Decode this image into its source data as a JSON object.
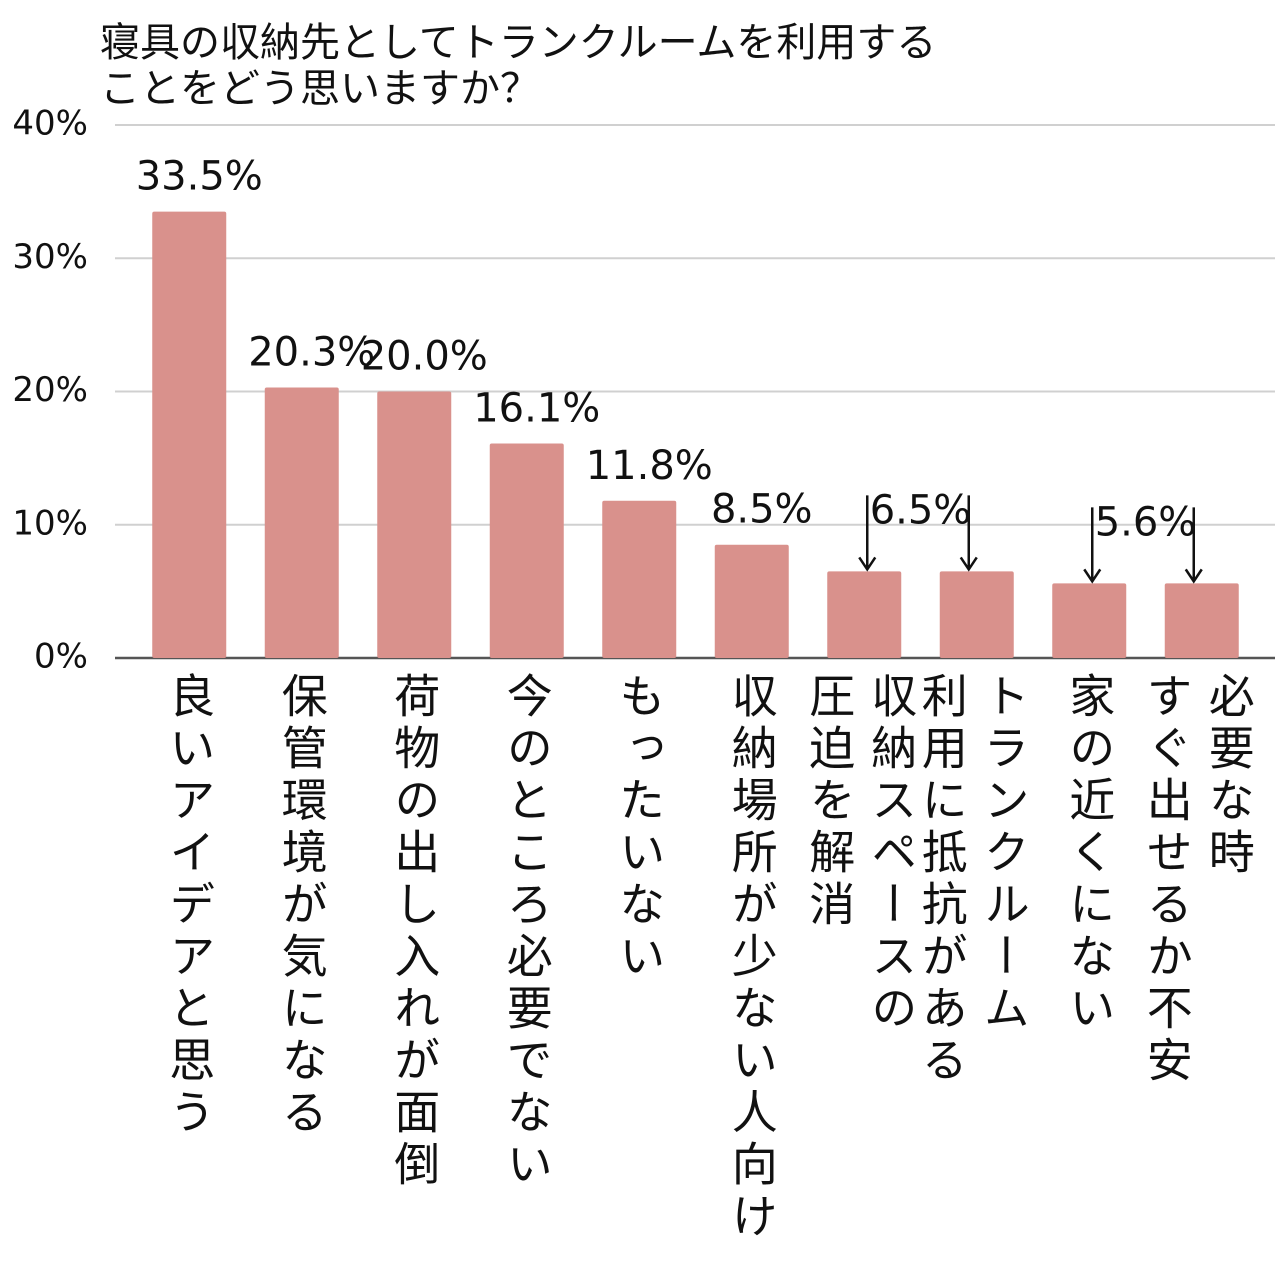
{
  "chart_data": {
    "type": "bar",
    "title": [
      "寝具の収納先としてトランクルームを利用する",
      "ことをどう思いますか？"
    ],
    "categories": [
      [
        "良いアイデアと思う"
      ],
      [
        "保管環境が気になる"
      ],
      [
        "荷物の出し入れが面倒"
      ],
      [
        "今のところ必要でない"
      ],
      [
        "もったいない"
      ],
      [
        "収納場所が少ない人向け"
      ],
      [
        "収納スペースの",
        "圧迫を解消"
      ],
      [
        "トランクルーム",
        "利用に抵抗がある"
      ],
      [
        "家の近くにない"
      ],
      [
        "必要な時",
        "すぐ出せるか不安"
      ]
    ],
    "values": [
      33.5,
      20.3,
      20.0,
      16.1,
      11.8,
      8.5,
      6.5,
      6.5,
      5.6,
      5.6
    ],
    "value_labels": [
      "33.5%",
      "20.3%",
      "20.0%",
      "16.1%",
      "11.8%",
      "8.5%",
      "6.5%",
      null,
      "5.6%",
      null
    ],
    "color": "#d9918c",
    "ylim": [
      0,
      40
    ],
    "yticks": [
      {
        "value": 0,
        "label": "0%"
      },
      {
        "value": 10,
        "label": "10%"
      },
      {
        "value": 20,
        "label": "20%"
      },
      {
        "value": 30,
        "label": "30%"
      },
      {
        "value": 40,
        "label": "40%"
      }
    ],
    "grid": true
  }
}
